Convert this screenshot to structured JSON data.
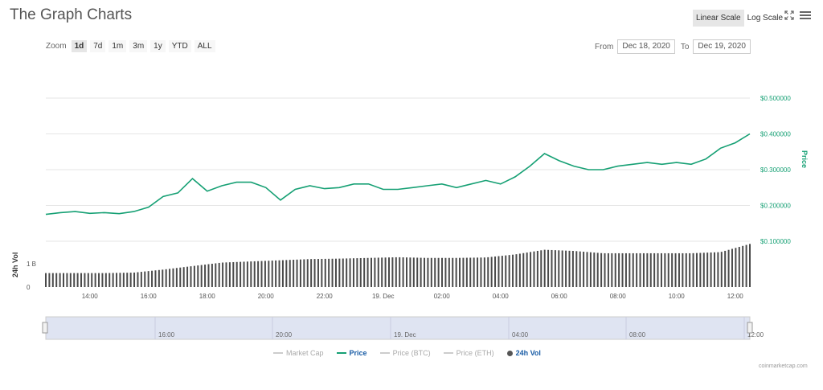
{
  "header": {
    "title": "The Graph Charts",
    "linear_scale": "Linear Scale",
    "log_scale": "Log Scale",
    "fullscreen_icon": "expand-icon",
    "menu_icon": "hamburger-menu-icon"
  },
  "zoom": {
    "label": "Zoom",
    "buttons": [
      "1d",
      "7d",
      "1m",
      "3m",
      "1y",
      "YTD",
      "ALL"
    ],
    "active": "1d"
  },
  "range": {
    "from_label": "From",
    "from_value": "Dec 18, 2020",
    "to_label": "To",
    "to_value": "Dec 19, 2020"
  },
  "legend": [
    {
      "label": "Market Cap",
      "enabled": false
    },
    {
      "label": "Price",
      "enabled": true,
      "color": "#16a074"
    },
    {
      "label": "Price (BTC)",
      "enabled": false
    },
    {
      "label": "Price (ETH)",
      "enabled": false
    },
    {
      "label": "24h Vol",
      "enabled": true,
      "color": "#4a4a4a"
    }
  ],
  "credits": "coinmarketcap.com",
  "colors": {
    "price": "#16a074",
    "volume": "#4a4a4a",
    "navigator_fill": "#dfe4f2"
  },
  "chart_data": {
    "type": "line",
    "x_start": "Dec 18 12:30",
    "x_end": "Dec 19 12:05",
    "x_tick_labels": [
      "14:00",
      "16:00",
      "18:00",
      "20:00",
      "22:00",
      "19. Dec",
      "02:00",
      "04:00",
      "06:00",
      "08:00",
      "10:00",
      "12:00"
    ],
    "navigator_tick_labels": [
      "16:00",
      "20:00",
      "19. Dec",
      "04:00",
      "08:00",
      "12:00"
    ],
    "y_axis_price": {
      "label": "Price",
      "tick_labels": [
        "$0.100000",
        "$0.200000",
        "$0.300000",
        "$0.400000",
        "$0.500000"
      ],
      "range": [
        0.1,
        0.5
      ]
    },
    "y_axis_volume": {
      "label": "24h Vol",
      "tick_labels": [
        "0",
        "1 B"
      ],
      "range": [
        0,
        1.9
      ]
    },
    "series": [
      {
        "name": "Price",
        "hours": [
          0,
          0.5,
          1,
          1.5,
          2,
          2.5,
          3,
          3.5,
          4,
          4.5,
          5,
          5.5,
          6,
          6.5,
          7,
          7.5,
          8,
          8.5,
          9,
          9.5,
          10,
          10.5,
          11,
          11.5,
          12,
          12.5,
          13,
          13.5,
          14,
          14.5,
          15,
          15.5,
          16,
          16.5,
          17,
          17.5,
          18,
          18.5,
          19,
          19.5,
          20,
          20.5,
          21,
          21.5,
          22,
          22.5,
          23,
          23.5,
          24
        ],
        "values": [
          0.175,
          0.18,
          0.183,
          0.178,
          0.18,
          0.177,
          0.183,
          0.195,
          0.225,
          0.235,
          0.275,
          0.24,
          0.255,
          0.265,
          0.265,
          0.25,
          0.215,
          0.245,
          0.255,
          0.247,
          0.25,
          0.26,
          0.26,
          0.245,
          0.245,
          0.25,
          0.255,
          0.26,
          0.25,
          0.26,
          0.27,
          0.26,
          0.28,
          0.31,
          0.345,
          0.325,
          0.31,
          0.3,
          0.3,
          0.31,
          0.315,
          0.32,
          0.315,
          0.32,
          0.315,
          0.33,
          0.36,
          0.375,
          0.4
        ]
      },
      {
        "name": "24h Vol",
        "hours": [
          0,
          1,
          2,
          3,
          4,
          5,
          6,
          7,
          8,
          9,
          10,
          11,
          12,
          13,
          14,
          15,
          16,
          17,
          18,
          19,
          20,
          21,
          22,
          23,
          24
        ],
        "values": [
          0.6,
          0.6,
          0.6,
          0.62,
          0.75,
          0.9,
          1.05,
          1.1,
          1.15,
          1.2,
          1.22,
          1.25,
          1.28,
          1.25,
          1.25,
          1.27,
          1.4,
          1.6,
          1.55,
          1.45,
          1.45,
          1.45,
          1.45,
          1.5,
          1.85
        ]
      }
    ]
  }
}
